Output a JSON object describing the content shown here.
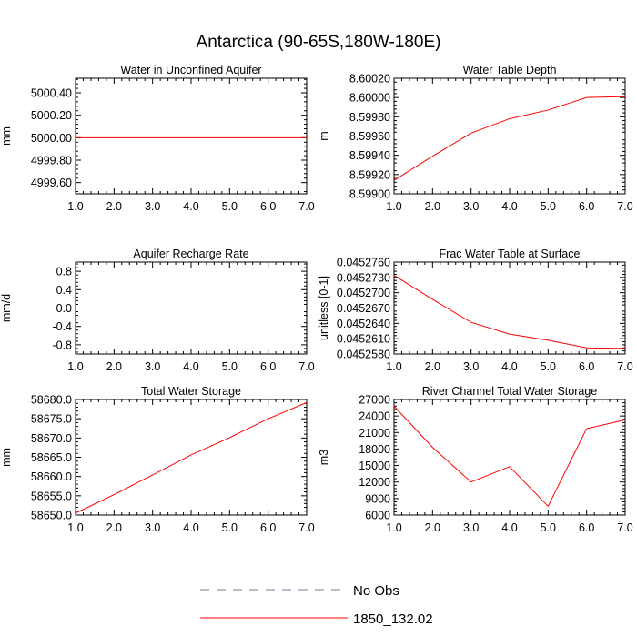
{
  "title": "Antarctica (90-65S,180W-180E)",
  "legend": {
    "items": [
      {
        "label": "No Obs",
        "style": "dashed",
        "color": "#7a7a9a"
      },
      {
        "label": "1850_132.02",
        "style": "solid",
        "color": "#ff0000"
      }
    ]
  },
  "chart_data": [
    {
      "type": "line",
      "title": "Water in Unconfined Aquifer",
      "ylabel": "mm",
      "x": [
        1,
        2,
        3,
        4,
        5,
        6,
        7
      ],
      "xlim": [
        1,
        7
      ],
      "xticks": [
        "1.0",
        "2.0",
        "3.0",
        "4.0",
        "5.0",
        "6.0",
        "7.0"
      ],
      "ylim": [
        4999.5,
        5000.53
      ],
      "yticks": [
        {
          "v": 5000.4,
          "label": "5000.40"
        },
        {
          "v": 5000.2,
          "label": "5000.20"
        },
        {
          "v": 5000.0,
          "label": "5000.00"
        },
        {
          "v": 4999.8,
          "label": "4999.80"
        },
        {
          "v": 4999.6,
          "label": "4999.60"
        }
      ],
      "series": [
        {
          "values": [
            5000.0,
            5000.0,
            5000.0,
            5000.0,
            5000.0,
            5000.0,
            5000.0
          ],
          "color": "#ff0000"
        }
      ]
    },
    {
      "type": "line",
      "title": "Water Table Depth",
      "ylabel": "m",
      "x": [
        1,
        2,
        3,
        4,
        5,
        6,
        7
      ],
      "xlim": [
        1,
        7
      ],
      "xticks": [
        "1.0",
        "2.0",
        "3.0",
        "4.0",
        "5.0",
        "6.0",
        "7.0"
      ],
      "ylim": [
        8.599,
        8.6002
      ],
      "yticks": [
        {
          "v": 8.6002,
          "label": "8.60020"
        },
        {
          "v": 8.6,
          "label": "8.60000"
        },
        {
          "v": 8.5998,
          "label": "8.59980"
        },
        {
          "v": 8.5996,
          "label": "8.59960"
        },
        {
          "v": 8.5994,
          "label": "8.59940"
        },
        {
          "v": 8.5992,
          "label": "8.59920"
        },
        {
          "v": 8.599,
          "label": "8.59900"
        }
      ],
      "series": [
        {
          "values": [
            8.59914,
            8.59939,
            8.59963,
            8.59978,
            8.59987,
            8.6,
            8.60001
          ],
          "color": "#ff0000"
        }
      ]
    },
    {
      "type": "line",
      "title": "Aquifer Recharge Rate",
      "ylabel": "mm/d",
      "x": [
        1,
        2,
        3,
        4,
        5,
        6,
        7
      ],
      "xlim": [
        1,
        7
      ],
      "xticks": [
        "1.0",
        "2.0",
        "3.0",
        "4.0",
        "5.0",
        "6.0",
        "7.0"
      ],
      "ylim": [
        -1.0,
        1.0
      ],
      "yticks": [
        {
          "v": 0.8,
          "label": "0.8"
        },
        {
          "v": 0.4,
          "label": "0.4"
        },
        {
          "v": 0.0,
          "label": "0.0"
        },
        {
          "v": -0.4,
          "label": "-0.4"
        },
        {
          "v": -0.8,
          "label": "-0.8"
        }
      ],
      "series": [
        {
          "values": [
            0,
            0,
            0,
            0,
            0,
            0,
            0
          ],
          "color": "#ff0000"
        }
      ]
    },
    {
      "type": "line",
      "title": "Frac Water Table at Surface",
      "ylabel": "unitless [0-1]",
      "x": [
        1,
        2,
        3,
        4,
        5,
        6,
        7
      ],
      "xlim": [
        1,
        7
      ],
      "xticks": [
        "1.0",
        "2.0",
        "3.0",
        "4.0",
        "5.0",
        "6.0",
        "7.0"
      ],
      "ylim": [
        0.045258,
        0.045276
      ],
      "yticks": [
        {
          "v": 0.045276,
          "label": "0.0452760"
        },
        {
          "v": 0.045273,
          "label": "0.0452730"
        },
        {
          "v": 0.04527,
          "label": "0.0452700"
        },
        {
          "v": 0.045267,
          "label": "0.0452670"
        },
        {
          "v": 0.045264,
          "label": "0.0452640"
        },
        {
          "v": 0.045261,
          "label": "0.0452610"
        },
        {
          "v": 0.045258,
          "label": "0.0452580"
        }
      ],
      "series": [
        {
          "values": [
            0.0452734,
            0.0452687,
            0.0452642,
            0.0452619,
            0.0452607,
            0.0452592,
            0.0452591
          ],
          "color": "#ff0000"
        }
      ]
    },
    {
      "type": "line",
      "title": "Total Water Storage",
      "ylabel": "mm",
      "x": [
        1,
        2,
        3,
        4,
        5,
        6,
        7
      ],
      "xlim": [
        1,
        7
      ],
      "xticks": [
        "1.0",
        "2.0",
        "3.0",
        "4.0",
        "5.0",
        "6.0",
        "7.0"
      ],
      "ylim": [
        58650,
        58680
      ],
      "yticks": [
        {
          "v": 58680,
          "label": "58680.0"
        },
        {
          "v": 58675,
          "label": "58675.0"
        },
        {
          "v": 58670,
          "label": "58670.0"
        },
        {
          "v": 58665,
          "label": "58665.0"
        },
        {
          "v": 58660,
          "label": "58660.0"
        },
        {
          "v": 58655,
          "label": "58655.0"
        },
        {
          "v": 58650,
          "label": "58650.0"
        }
      ],
      "series": [
        {
          "values": [
            58650.5,
            58655.3,
            58660.4,
            58665.6,
            58670.1,
            58675.0,
            58679.2
          ],
          "color": "#ff0000"
        }
      ]
    },
    {
      "type": "line",
      "title": "River Channel Total Water Storage",
      "ylabel": "m3",
      "x": [
        1,
        2,
        3,
        4,
        5,
        6,
        7
      ],
      "xlim": [
        1,
        7
      ],
      "xticks": [
        "1.0",
        "2.0",
        "3.0",
        "4.0",
        "5.0",
        "6.0",
        "7.0"
      ],
      "ylim": [
        6000,
        27000
      ],
      "yticks": [
        {
          "v": 27000,
          "label": "27000"
        },
        {
          "v": 24000,
          "label": "24000"
        },
        {
          "v": 21000,
          "label": "21000"
        },
        {
          "v": 18000,
          "label": "18000"
        },
        {
          "v": 15000,
          "label": "15000"
        },
        {
          "v": 12000,
          "label": "12000"
        },
        {
          "v": 9000,
          "label": "9000"
        },
        {
          "v": 6000,
          "label": "6000"
        }
      ],
      "series": [
        {
          "values": [
            25800,
            18300,
            12000,
            14800,
            7600,
            21700,
            23300
          ],
          "color": "#ff0000"
        }
      ]
    }
  ]
}
